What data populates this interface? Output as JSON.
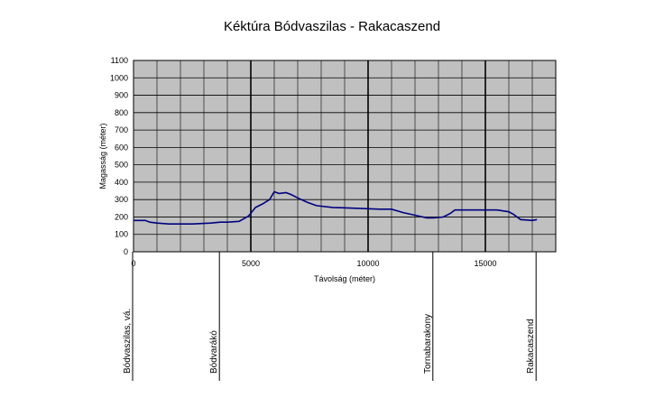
{
  "chart_data": {
    "type": "line",
    "title": "Kéktúra Bódvaszilas - Rakacaszend",
    "xlabel": "Távolság (méter)",
    "ylabel": "Magasság (méter)",
    "xlim": [
      0,
      18000
    ],
    "ylim": [
      0,
      1100
    ],
    "x_ticks": [
      0,
      5000,
      10000,
      15000
    ],
    "y_ticks": [
      0,
      100,
      200,
      300,
      400,
      500,
      600,
      700,
      800,
      900,
      1000,
      1100
    ],
    "grid": true,
    "plot_bg": "#c0c0c0",
    "line_color": "#000080",
    "series": [
      {
        "x": [
          0,
          500,
          700,
          1000,
          1500,
          2500,
          3300,
          3700,
          4000,
          4500,
          4900,
          5200,
          5500,
          5800,
          6000,
          6200,
          6500,
          6700,
          7000,
          7400,
          7800,
          8500,
          9500,
          10500,
          11000,
          11500,
          12000,
          12500,
          12800,
          13200,
          13500,
          13700,
          14000,
          14500,
          15000,
          15500,
          16000,
          16200,
          16500,
          17000,
          17200
        ],
        "y": [
          180,
          180,
          170,
          165,
          160,
          160,
          165,
          170,
          170,
          175,
          205,
          255,
          275,
          300,
          345,
          335,
          340,
          330,
          310,
          285,
          265,
          255,
          250,
          245,
          245,
          225,
          210,
          195,
          195,
          200,
          220,
          240,
          240,
          240,
          240,
          240,
          230,
          215,
          185,
          180,
          185
        ]
      }
    ],
    "markers": [
      {
        "x": 0,
        "label": "Bódvaszilas, vá."
      },
      {
        "x": 3700,
        "label": "Bódvarákó"
      },
      {
        "x": 12800,
        "label": "Tornabarakony"
      },
      {
        "x": 17200,
        "label": "Rakacaszend"
      }
    ]
  }
}
